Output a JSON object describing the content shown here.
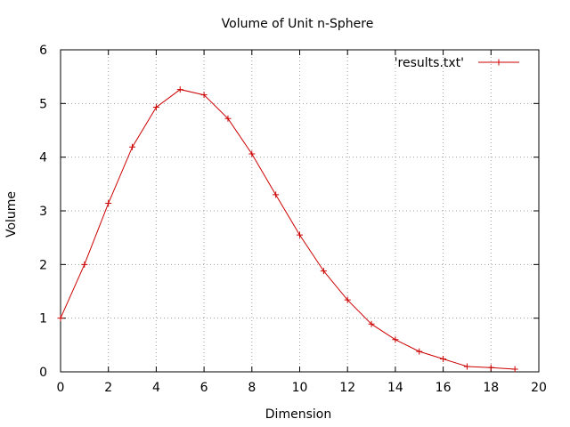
{
  "chart_data": {
    "type": "line",
    "title": "Volume of Unit n-Sphere",
    "xlabel": "Dimension",
    "ylabel": "Volume",
    "xlim": [
      0,
      20
    ],
    "ylim": [
      0,
      6
    ],
    "xticks": [
      0,
      2,
      4,
      6,
      8,
      10,
      12,
      14,
      16,
      18,
      20
    ],
    "yticks": [
      0,
      1,
      2,
      3,
      4,
      5,
      6
    ],
    "grid": true,
    "legend_position": "top-right",
    "series": [
      {
        "name": "'results.txt'",
        "color": "#cc0000",
        "marker": "plus",
        "x": [
          0,
          1,
          2,
          3,
          4,
          5,
          6,
          7,
          8,
          9,
          10,
          11,
          12,
          13,
          14,
          15,
          16,
          17,
          18,
          19
        ],
        "y": [
          1.0,
          2.0,
          3.14,
          4.19,
          4.93,
          5.26,
          5.16,
          4.72,
          4.06,
          3.3,
          2.55,
          1.88,
          1.34,
          0.89,
          0.6,
          0.38,
          0.24,
          0.1,
          0.08,
          0.05
        ]
      }
    ]
  }
}
